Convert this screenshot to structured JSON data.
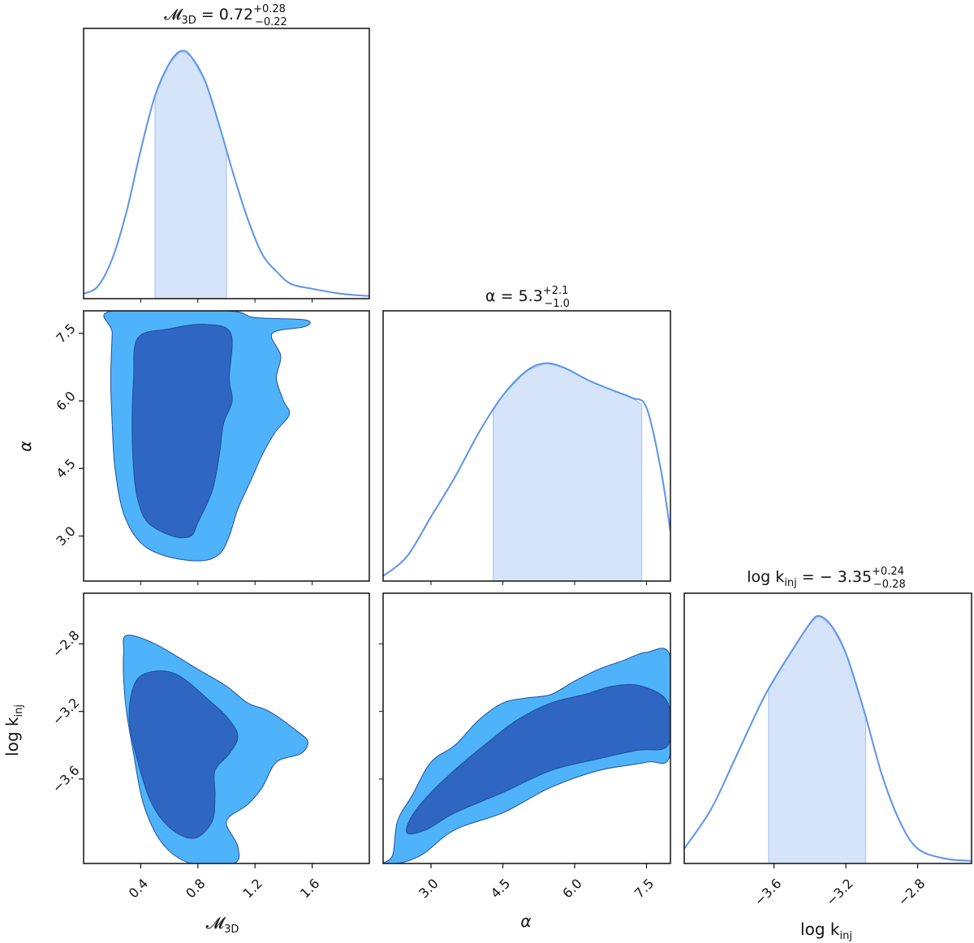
{
  "chart_data": {
    "type": "corner",
    "colors": {
      "line": "#5b93ef",
      "band": "#d6e4fa",
      "band_edge": "#aac6f3",
      "contour_outer": "#4fb3fb",
      "contour_inner": "#2e66c2",
      "contour_edge": "#1f4f9a"
    },
    "params": [
      {
        "key": "M3D",
        "title_name": "𝓜",
        "title_sub": "3D",
        "median": "0.72",
        "plus": "+0.28",
        "minus": "−0.22",
        "axis_label": "𝓜",
        "axis_sub": "3D",
        "range": [
          0.0,
          2.0
        ],
        "ticks": [
          0.4,
          0.8,
          1.2,
          1.6
        ],
        "tick_labels": [
          "0.4",
          "0.8",
          "1.2",
          "1.6"
        ],
        "band": [
          0.5,
          1.0
        ],
        "density": [
          [
            0.0,
            0.02
          ],
          [
            0.1,
            0.05
          ],
          [
            0.2,
            0.16
          ],
          [
            0.3,
            0.35
          ],
          [
            0.4,
            0.6
          ],
          [
            0.5,
            0.82
          ],
          [
            0.6,
            0.95
          ],
          [
            0.68,
            1.0
          ],
          [
            0.75,
            0.98
          ],
          [
            0.85,
            0.88
          ],
          [
            0.95,
            0.7
          ],
          [
            1.05,
            0.5
          ],
          [
            1.15,
            0.32
          ],
          [
            1.25,
            0.18
          ],
          [
            1.35,
            0.11
          ],
          [
            1.45,
            0.06
          ],
          [
            1.6,
            0.04
          ],
          [
            1.8,
            0.02
          ],
          [
            2.0,
            0.01
          ]
        ]
      },
      {
        "key": "alpha",
        "title_name": "α",
        "title_sub": "",
        "median": "5.3",
        "plus": "+2.1",
        "minus": "−1.0",
        "axis_label": "α",
        "axis_sub": "",
        "range": [
          2.0,
          8.0
        ],
        "ticks": [
          3.0,
          4.5,
          6.0,
          7.5
        ],
        "tick_labels": [
          "3.0",
          "4.5",
          "6.0",
          "7.5"
        ],
        "band": [
          4.3,
          7.4
        ],
        "density": [
          [
            2.0,
            0.02
          ],
          [
            2.5,
            0.1
          ],
          [
            3.0,
            0.26
          ],
          [
            3.5,
            0.42
          ],
          [
            4.0,
            0.6
          ],
          [
            4.5,
            0.75
          ],
          [
            5.0,
            0.85
          ],
          [
            5.4,
            0.88
          ],
          [
            5.8,
            0.86
          ],
          [
            6.3,
            0.81
          ],
          [
            6.8,
            0.77
          ],
          [
            7.2,
            0.74
          ],
          [
            7.5,
            0.7
          ],
          [
            7.8,
            0.45
          ],
          [
            8.0,
            0.2
          ]
        ]
      },
      {
        "key": "logkinj",
        "title_name": "log k",
        "title_sub": "inj",
        "median": "− 3.35",
        "plus": "+0.24",
        "minus": "−0.28",
        "axis_label": "log k",
        "axis_sub": "inj",
        "range": [
          -4.1,
          -2.5
        ],
        "ticks": [
          -3.6,
          -3.2,
          -2.8
        ],
        "tick_labels": [
          "−3.6",
          "−3.2",
          "−2.8"
        ],
        "band": [
          -3.63,
          -3.09
        ],
        "density": [
          [
            -4.1,
            0.06
          ],
          [
            -3.95,
            0.22
          ],
          [
            -3.8,
            0.45
          ],
          [
            -3.65,
            0.68
          ],
          [
            -3.5,
            0.86
          ],
          [
            -3.4,
            0.97
          ],
          [
            -3.35,
            1.0
          ],
          [
            -3.28,
            0.96
          ],
          [
            -3.2,
            0.85
          ],
          [
            -3.1,
            0.62
          ],
          [
            -3.0,
            0.36
          ],
          [
            -2.9,
            0.17
          ],
          [
            -2.8,
            0.06
          ],
          [
            -2.65,
            0.02
          ],
          [
            -2.5,
            0.01
          ]
        ]
      }
    ],
    "contours": [
      {
        "x": "M3D",
        "y": "alpha",
        "outer": [
          [
            0.2,
            8.0
          ],
          [
            1.0,
            8.0
          ],
          [
            1.2,
            7.85
          ],
          [
            1.55,
            7.8
          ],
          [
            1.55,
            7.65
          ],
          [
            1.32,
            7.5
          ],
          [
            1.38,
            7.0
          ],
          [
            1.35,
            6.5
          ],
          [
            1.4,
            6.0
          ],
          [
            1.44,
            5.7
          ],
          [
            1.34,
            5.3
          ],
          [
            1.25,
            4.8
          ],
          [
            1.18,
            4.3
          ],
          [
            1.08,
            3.6
          ],
          [
            1.02,
            3.0
          ],
          [
            0.95,
            2.6
          ],
          [
            0.82,
            2.45
          ],
          [
            0.58,
            2.55
          ],
          [
            0.4,
            2.85
          ],
          [
            0.28,
            3.5
          ],
          [
            0.22,
            4.5
          ],
          [
            0.2,
            5.5
          ],
          [
            0.19,
            6.5
          ],
          [
            0.2,
            7.5
          ]
        ],
        "inner": [
          [
            0.38,
            7.4
          ],
          [
            0.6,
            7.6
          ],
          [
            0.85,
            7.7
          ],
          [
            1.03,
            7.5
          ],
          [
            1.02,
            6.5
          ],
          [
            1.04,
            6.0
          ],
          [
            0.98,
            5.5
          ],
          [
            0.95,
            4.8
          ],
          [
            0.9,
            4.0
          ],
          [
            0.8,
            3.3
          ],
          [
            0.75,
            3.0
          ],
          [
            0.62,
            3.0
          ],
          [
            0.45,
            3.3
          ],
          [
            0.38,
            3.8
          ],
          [
            0.35,
            4.5
          ],
          [
            0.34,
            5.5
          ],
          [
            0.35,
            6.5
          ]
        ]
      },
      {
        "x": "M3D",
        "y": "logkinj",
        "outer": [
          [
            0.3,
            -2.75
          ],
          [
            0.5,
            -2.8
          ],
          [
            0.8,
            -2.95
          ],
          [
            1.0,
            -3.05
          ],
          [
            1.15,
            -3.15
          ],
          [
            1.3,
            -3.2
          ],
          [
            1.5,
            -3.32
          ],
          [
            1.57,
            -3.38
          ],
          [
            1.52,
            -3.45
          ],
          [
            1.35,
            -3.5
          ],
          [
            1.25,
            -3.65
          ],
          [
            1.15,
            -3.75
          ],
          [
            1.0,
            -3.85
          ],
          [
            1.08,
            -4.0
          ],
          [
            1.05,
            -4.1
          ],
          [
            0.75,
            -4.1
          ],
          [
            0.55,
            -3.98
          ],
          [
            0.42,
            -3.75
          ],
          [
            0.35,
            -3.45
          ],
          [
            0.3,
            -3.2
          ],
          [
            0.28,
            -3.0
          ],
          [
            0.28,
            -2.85
          ]
        ],
        "inner": [
          [
            0.35,
            -3.05
          ],
          [
            0.45,
            -2.97
          ],
          [
            0.65,
            -2.98
          ],
          [
            0.9,
            -3.15
          ],
          [
            1.02,
            -3.25
          ],
          [
            1.08,
            -3.35
          ],
          [
            1.02,
            -3.45
          ],
          [
            0.92,
            -3.55
          ],
          [
            0.92,
            -3.7
          ],
          [
            0.9,
            -3.85
          ],
          [
            0.78,
            -3.95
          ],
          [
            0.62,
            -3.9
          ],
          [
            0.48,
            -3.75
          ],
          [
            0.38,
            -3.5
          ],
          [
            0.32,
            -3.25
          ]
        ]
      },
      {
        "x": "alpha",
        "y": "logkinj",
        "outer": [
          [
            2.0,
            -4.1
          ],
          [
            2.3,
            -4.1
          ],
          [
            2.8,
            -4.05
          ],
          [
            3.5,
            -3.9
          ],
          [
            4.5,
            -3.8
          ],
          [
            5.5,
            -3.65
          ],
          [
            6.5,
            -3.55
          ],
          [
            7.5,
            -3.5
          ],
          [
            8.0,
            -3.45
          ],
          [
            8.0,
            -2.88
          ],
          [
            7.5,
            -2.85
          ],
          [
            7.0,
            -2.9
          ],
          [
            6.5,
            -2.95
          ],
          [
            6.0,
            -3.02
          ],
          [
            5.5,
            -3.1
          ],
          [
            5.0,
            -3.12
          ],
          [
            4.5,
            -3.15
          ],
          [
            4.0,
            -3.25
          ],
          [
            3.5,
            -3.4
          ],
          [
            3.0,
            -3.5
          ],
          [
            2.6,
            -3.7
          ],
          [
            2.3,
            -3.85
          ],
          [
            2.2,
            -4.05
          ]
        ],
        "inner": [
          [
            2.5,
            -3.92
          ],
          [
            2.9,
            -3.9
          ],
          [
            3.5,
            -3.8
          ],
          [
            4.5,
            -3.68
          ],
          [
            5.5,
            -3.55
          ],
          [
            6.5,
            -3.48
          ],
          [
            7.3,
            -3.43
          ],
          [
            7.95,
            -3.4
          ],
          [
            7.95,
            -3.15
          ],
          [
            7.4,
            -3.05
          ],
          [
            6.8,
            -3.05
          ],
          [
            6.2,
            -3.1
          ],
          [
            5.5,
            -3.15
          ],
          [
            4.8,
            -3.25
          ],
          [
            4.2,
            -3.38
          ],
          [
            3.6,
            -3.52
          ],
          [
            3.0,
            -3.68
          ],
          [
            2.6,
            -3.82
          ]
        ]
      }
    ]
  }
}
